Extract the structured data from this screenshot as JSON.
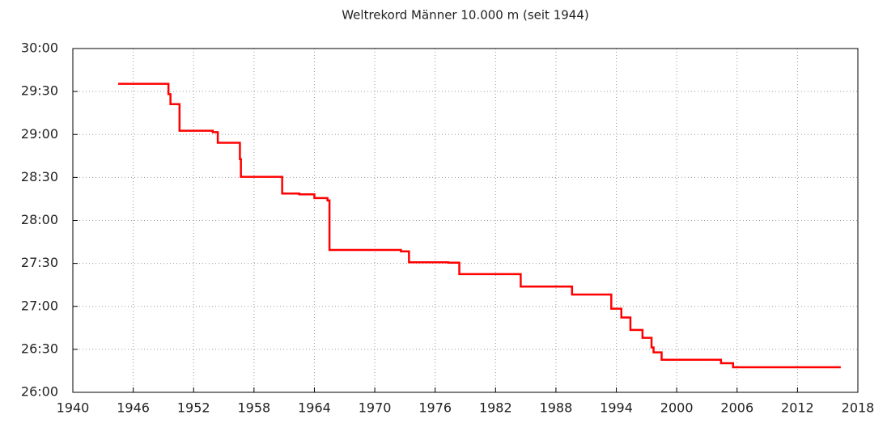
{
  "chart_data": {
    "type": "line",
    "step": "post",
    "title": "Weltrekord Männer 10.000 m (seit 1944)",
    "series": [
      {
        "color": "#ff0000",
        "x": [
          1944.5,
          1949.5,
          1949.7,
          1950.6,
          1953.9,
          1954.4,
          1956.6,
          1956.7,
          1960.8,
          1962.5,
          1964.0,
          1965.3,
          1965.5,
          1972.6,
          1973.4,
          1977.3,
          1978.4,
          1984.5,
          1989.6,
          1993.5,
          1994.5,
          1995.4,
          1996.6,
          1997.5,
          1997.7,
          1998.5,
          2004.4,
          2005.6,
          2016.3
        ],
        "values": [
          1775.4,
          1768.2,
          1761.2,
          1742.6,
          1741.6,
          1734.2,
          1722.8,
          1710.4,
          1698.8,
          1698.2,
          1695.6,
          1694.0,
          1659.4,
          1658.4,
          1650.8,
          1650.5,
          1642.5,
          1633.81,
          1628.23,
          1618.38,
          1612.23,
          1603.53,
          1598.08,
          1591.32,
          1587.85,
          1582.75,
          1580.31,
          1577.53,
          1577.53
        ]
      }
    ],
    "xlim": [
      1940,
      2018
    ],
    "xticks": [
      1940,
      1946,
      1952,
      1958,
      1964,
      1970,
      1976,
      1982,
      1988,
      1994,
      2000,
      2006,
      2012,
      2018
    ],
    "ylim": [
      1560,
      1800
    ],
    "yticks": [
      {
        "value": 1560,
        "label": "26:00"
      },
      {
        "value": 1590,
        "label": "26:30"
      },
      {
        "value": 1620,
        "label": "27:00"
      },
      {
        "value": 1650,
        "label": "27:30"
      },
      {
        "value": 1680,
        "label": "28:00"
      },
      {
        "value": 1710,
        "label": "28:30"
      },
      {
        "value": 1740,
        "label": "29:00"
      },
      {
        "value": 1770,
        "label": "29:30"
      },
      {
        "value": 1800,
        "label": "30:00"
      }
    ],
    "grid": true
  }
}
